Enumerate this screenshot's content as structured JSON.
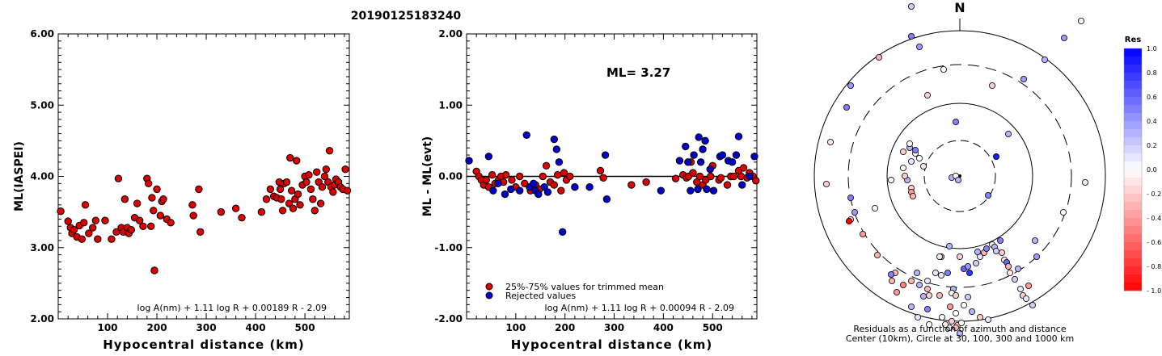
{
  "page_title": "20190125183240",
  "chart_data": [
    {
      "type": "scatter",
      "ylabel": "ML(IASPEI)",
      "xlabel": "Hypocentral distance (km)",
      "xlim": [
        0,
        590
      ],
      "ylim": [
        2.0,
        6.0
      ],
      "xticks": [
        100,
        200,
        300,
        400,
        500
      ],
      "yticks": [
        2.0,
        3.0,
        4.0,
        5.0,
        6.0
      ],
      "ytick_labels": [
        "2.00",
        "3.00",
        "4.00",
        "5.00",
        "6.00"
      ],
      "formula": "log A(nm) + 1.11 log R + 0.00189 R - 2.09",
      "marker_color": "#dd0000",
      "points": [
        [
          5,
          3.51
        ],
        [
          20,
          3.37
        ],
        [
          25,
          3.28
        ],
        [
          28,
          3.2
        ],
        [
          32,
          3.25
        ],
        [
          38,
          3.15
        ],
        [
          43,
          3.31
        ],
        [
          48,
          3.12
        ],
        [
          52,
          3.35
        ],
        [
          55,
          3.6
        ],
        [
          62,
          3.2
        ],
        [
          70,
          3.28
        ],
        [
          76,
          3.38
        ],
        [
          80,
          3.12
        ],
        [
          95,
          3.38
        ],
        [
          108,
          3.12
        ],
        [
          118,
          3.22
        ],
        [
          122,
          3.97
        ],
        [
          128,
          3.28
        ],
        [
          132,
          3.22
        ],
        [
          135,
          3.68
        ],
        [
          140,
          3.28
        ],
        [
          143,
          3.2
        ],
        [
          148,
          3.25
        ],
        [
          155,
          3.42
        ],
        [
          160,
          3.62
        ],
        [
          165,
          3.38
        ],
        [
          172,
          3.3
        ],
        [
          180,
          3.97
        ],
        [
          183,
          3.9
        ],
        [
          188,
          3.3
        ],
        [
          190,
          3.7
        ],
        [
          193,
          3.52
        ],
        [
          195,
          2.68
        ],
        [
          200,
          3.82
        ],
        [
          207,
          3.45
        ],
        [
          210,
          3.65
        ],
        [
          213,
          3.68
        ],
        [
          220,
          3.4
        ],
        [
          228,
          3.35
        ],
        [
          272,
          3.6
        ],
        [
          274,
          3.45
        ],
        [
          285,
          3.82
        ],
        [
          288,
          3.22
        ],
        [
          330,
          3.5
        ],
        [
          360,
          3.55
        ],
        [
          372,
          3.42
        ],
        [
          412,
          3.5
        ],
        [
          422,
          3.68
        ],
        [
          430,
          3.82
        ],
        [
          437,
          3.72
        ],
        [
          443,
          3.7
        ],
        [
          448,
          3.92
        ],
        [
          450,
          3.82
        ],
        [
          452,
          3.68
        ],
        [
          455,
          3.52
        ],
        [
          458,
          3.9
        ],
        [
          463,
          3.92
        ],
        [
          468,
          3.62
        ],
        [
          470,
          4.26
        ],
        [
          473,
          3.8
        ],
        [
          476,
          3.55
        ],
        [
          480,
          3.68
        ],
        [
          483,
          4.22
        ],
        [
          486,
          3.75
        ],
        [
          490,
          3.6
        ],
        [
          495,
          3.88
        ],
        [
          500,
          4.0
        ],
        [
          503,
          3.92
        ],
        [
          508,
          4.02
        ],
        [
          512,
          3.82
        ],
        [
          516,
          3.68
        ],
        [
          520,
          3.52
        ],
        [
          524,
          4.06
        ],
        [
          528,
          3.92
        ],
        [
          532,
          3.62
        ],
        [
          535,
          3.85
        ],
        [
          540,
          4.0
        ],
        [
          543,
          4.1
        ],
        [
          547,
          3.92
        ],
        [
          550,
          4.36
        ],
        [
          553,
          3.85
        ],
        [
          557,
          3.78
        ],
        [
          560,
          3.88
        ],
        [
          563,
          3.96
        ],
        [
          568,
          3.92
        ],
        [
          572,
          3.85
        ],
        [
          577,
          3.82
        ],
        [
          582,
          4.1
        ],
        [
          586,
          3.8
        ]
      ]
    },
    {
      "type": "scatter",
      "ylabel": "ML - ML(evt)",
      "xlabel": "Hypocentral distance (km)",
      "xlim": [
        0,
        590
      ],
      "ylim": [
        -2.0,
        2.0
      ],
      "xticks": [
        100,
        200,
        300,
        400,
        500
      ],
      "yticks": [
        -2.0,
        -1.0,
        0.0,
        1.0,
        2.0
      ],
      "ytick_labels": [
        "-2.00",
        "-1.00",
        "0.00",
        "1.00",
        "2.00"
      ],
      "annotation": "ML= 3.27",
      "formula": "log A(nm) + 1.11 log R + 0.00094 R - 2.09",
      "legend": [
        {
          "label": "25%-75% values for trimmed mean",
          "color": "#dd0000"
        },
        {
          "label": "Rejected values",
          "color": "#0000cc"
        }
      ],
      "red_points": [
        [
          20,
          0.07
        ],
        [
          25,
          0.0
        ],
        [
          30,
          -0.05
        ],
        [
          35,
          -0.12
        ],
        [
          40,
          -0.05
        ],
        [
          45,
          -0.15
        ],
        [
          52,
          0.02
        ],
        [
          58,
          -0.1
        ],
        [
          65,
          -0.05
        ],
        [
          70,
          0.0
        ],
        [
          75,
          -0.08
        ],
        [
          80,
          0.02
        ],
        [
          92,
          -0.05
        ],
        [
          100,
          -0.15
        ],
        [
          108,
          0.0
        ],
        [
          118,
          -0.1
        ],
        [
          130,
          -0.2
        ],
        [
          140,
          -0.12
        ],
        [
          148,
          -0.18
        ],
        [
          155,
          0.0
        ],
        [
          162,
          0.15
        ],
        [
          170,
          -0.08
        ],
        [
          178,
          -0.12
        ],
        [
          185,
          0.02
        ],
        [
          192,
          -0.2
        ],
        [
          198,
          0.05
        ],
        [
          203,
          -0.05
        ],
        [
          210,
          0.0
        ],
        [
          272,
          0.08
        ],
        [
          278,
          -0.02
        ],
        [
          335,
          -0.12
        ],
        [
          365,
          -0.08
        ],
        [
          425,
          -0.03
        ],
        [
          440,
          0.02
        ],
        [
          447,
          -0.02
        ],
        [
          451,
          0.0
        ],
        [
          456,
          0.2
        ],
        [
          460,
          0.05
        ],
        [
          468,
          -0.08
        ],
        [
          474,
          0.0
        ],
        [
          480,
          -0.12
        ],
        [
          486,
          -0.05
        ],
        [
          496,
          0.0
        ],
        [
          500,
          0.15
        ],
        [
          513,
          -0.05
        ],
        [
          517,
          -0.02
        ],
        [
          530,
          -0.12
        ],
        [
          537,
          0.0
        ],
        [
          543,
          0.0
        ],
        [
          553,
          0.08
        ],
        [
          558,
          0.0
        ],
        [
          563,
          0.12
        ],
        [
          570,
          -0.02
        ],
        [
          575,
          0.05
        ],
        [
          582,
          0.0
        ],
        [
          588,
          -0.06
        ]
      ],
      "blue_points": [
        [
          5,
          0.22
        ],
        [
          45,
          0.28
        ],
        [
          54,
          -0.2
        ],
        [
          64,
          -0.1
        ],
        [
          78,
          -0.25
        ],
        [
          90,
          -0.18
        ],
        [
          108,
          -0.2
        ],
        [
          122,
          0.58
        ],
        [
          128,
          -0.15
        ],
        [
          136,
          -0.1
        ],
        [
          140,
          -0.2
        ],
        [
          146,
          -0.25
        ],
        [
          158,
          -0.15
        ],
        [
          165,
          -0.22
        ],
        [
          178,
          0.52
        ],
        [
          183,
          0.38
        ],
        [
          188,
          0.2
        ],
        [
          195,
          -0.78
        ],
        [
          220,
          -0.15
        ],
        [
          250,
          -0.15
        ],
        [
          282,
          0.3
        ],
        [
          285,
          -0.32
        ],
        [
          395,
          -0.2
        ],
        [
          433,
          0.22
        ],
        [
          445,
          0.42
        ],
        [
          450,
          0.2
        ],
        [
          455,
          -0.2
        ],
        [
          462,
          0.3
        ],
        [
          470,
          -0.18
        ],
        [
          472,
          0.55
        ],
        [
          476,
          0.2
        ],
        [
          480,
          0.38
        ],
        [
          485,
          0.5
        ],
        [
          488,
          -0.18
        ],
        [
          495,
          0.1
        ],
        [
          502,
          -0.2
        ],
        [
          515,
          0.28
        ],
        [
          520,
          0.3
        ],
        [
          532,
          0.22
        ],
        [
          540,
          0.2
        ],
        [
          548,
          0.3
        ],
        [
          553,
          0.56
        ],
        [
          560,
          -0.12
        ],
        [
          575,
          0.0
        ],
        [
          585,
          0.28
        ]
      ]
    },
    {
      "type": "polar-scatter",
      "north_label": "N",
      "caption": "Residuals as a function of azimuth and distance",
      "caption2": "Center (10km), Circle at 30, 100, 300 and 1000 km",
      "colorbar_title": "Res",
      "colorbar_ticks": [
        1.0,
        0.8,
        0.6,
        0.4,
        0.2,
        0.0,
        -0.2,
        -0.4,
        -0.6,
        -0.8,
        -1.0
      ],
      "colorbar_tick_labels": [
        "1.0",
        "0.8",
        "0.6",
        "0.4",
        "0.2",
        "0.0",
        "- 0.2",
        "- 0.4",
        "- 0.6",
        "- 0.8",
        "- 1.0"
      ],
      "points": [
        [
          45,
          24,
          0.9
        ],
        [
          35,
          -24,
          0.5
        ],
        [
          60,
          52,
          0.3
        ],
        [
          -5,
          67,
          0.5
        ],
        [
          40,
          112,
          -0.2
        ],
        [
          79,
          120,
          0.4
        ],
        [
          105,
          144,
          0.3
        ],
        [
          129,
          171,
          0.4
        ],
        [
          150,
          192,
          0.0
        ],
        [
          155,
          -8,
          0.1
        ],
        [
          128,
          -45,
          0.0
        ],
        [
          -13,
          -87,
          0.3
        ],
        [
          -23,
          -123,
          0.1
        ],
        [
          -45,
          -149,
          0.3
        ],
        [
          -3,
          -185,
          -0.2
        ],
        [
          -13,
          -188,
          0.1
        ],
        [
          -38,
          -184,
          0.0
        ],
        [
          -52,
          -175,
          0.1
        ],
        [
          -60,
          -162,
          0.3
        ],
        [
          -78,
          -144,
          -0.4
        ],
        [
          -84,
          -130,
          -0.3
        ],
        [
          -102,
          -98,
          -0.3
        ],
        [
          -120,
          -72,
          -0.4
        ],
        [
          -135,
          -54,
          -0.2
        ],
        [
          -137,
          -56,
          -1.0
        ],
        [
          -130,
          -45,
          0.4
        ],
        [
          -135,
          -27,
          0.5
        ],
        [
          -105,
          -40,
          0.0
        ],
        [
          -85,
          -5,
          0.0
        ],
        [
          -70,
          30,
          -0.2
        ],
        [
          -40,
          100,
          -0.2
        ],
        [
          -20,
          132,
          0.0
        ],
        [
          -50,
          160,
          0.4
        ],
        [
          -60,
          173,
          0.5
        ],
        [
          -60,
          210,
          0.2
        ],
        [
          -100,
          147,
          -0.3
        ],
        [
          -135,
          112,
          0.4
        ],
        [
          -140,
          85,
          0.5
        ],
        [
          -160,
          42,
          -0.1
        ],
        [
          -165,
          -10,
          -0.2
        ],
        [
          -23,
          -100,
          0.3
        ],
        [
          -53,
          -120,
          0.3
        ],
        [
          -80,
          -120,
          -0.3
        ],
        [
          -85,
          -122,
          0.5
        ],
        [
          -60,
          -130,
          -0.3
        ],
        [
          -40,
          -140,
          -0.3
        ],
        [
          -70,
          -135,
          -0.5
        ],
        [
          -30,
          -120,
          0.1
        ],
        [
          -25,
          -100,
          -0.1
        ],
        [
          -70,
          10,
          0.0
        ],
        [
          -60,
          18,
          0.1
        ],
        [
          -50,
          22,
          0.0
        ],
        [
          -45,
          12,
          -0.1
        ],
        [
          -60,
          -15,
          -0.2
        ],
        [
          -65,
          -5,
          0.3
        ],
        [
          -60,
          -20,
          -0.4
        ],
        [
          -68,
          0,
          -0.2
        ],
        [
          -62,
          35,
          0.3
        ],
        [
          -55,
          28,
          0.0
        ],
        [
          -58,
          -25,
          -0.3
        ],
        [
          -55,
          32,
          0.5
        ],
        [
          -62,
          40,
          0.0
        ],
        [
          -10,
          -2,
          0.3
        ],
        [
          -5,
          0,
          0.0
        ],
        [
          -2,
          -5,
          0.3
        ],
        [
          0,
          -100,
          -0.2
        ],
        [
          5,
          -115,
          0.6
        ],
        [
          10,
          -112,
          0.4
        ],
        [
          12,
          -120,
          0.8
        ],
        [
          20,
          -108,
          0.2
        ],
        [
          25,
          -100,
          0.1
        ],
        [
          22,
          -94,
          0.3
        ],
        [
          30,
          -95,
          -0.3
        ],
        [
          33,
          -90,
          0.5
        ],
        [
          40,
          -85,
          -0.1
        ],
        [
          43,
          -88,
          0.3
        ],
        [
          45,
          -93,
          0.2
        ],
        [
          50,
          -80,
          0.5
        ],
        [
          52,
          -95,
          -0.2
        ],
        [
          55,
          -104,
          -0.1
        ],
        [
          58,
          -107,
          0.6
        ],
        [
          60,
          -112,
          -0.3
        ],
        [
          62,
          -120,
          -0.1
        ],
        [
          68,
          -128,
          0.2
        ],
        [
          72,
          -115,
          0.3
        ],
        [
          75,
          -140,
          0.1
        ],
        [
          78,
          -148,
          -0.2
        ],
        [
          82,
          -152,
          0.1
        ],
        [
          85,
          -136,
          -0.4
        ],
        [
          90,
          -160,
          0.2
        ],
        [
          93,
          -80,
          0.3
        ],
        [
          95,
          -100,
          0.4
        ],
        [
          -8,
          -140,
          0.3
        ],
        [
          -25,
          -148,
          -0.3
        ],
        [
          -38,
          -148,
          -0.2
        ],
        [
          -40,
          -130,
          0.1
        ],
        [
          -50,
          -135,
          0.3
        ],
        [
          -15,
          -120,
          0.5
        ],
        [
          -10,
          -145,
          0.0
        ],
        [
          -5,
          -148,
          -0.2
        ],
        [
          5,
          -160,
          0.0
        ],
        [
          10,
          -150,
          0.2
        ],
        [
          15,
          -168,
          0.3
        ],
        [
          25,
          -175,
          -0.2
        ],
        [
          35,
          -178,
          0.1
        ],
        [
          -10,
          -180,
          -0.2
        ],
        [
          -5,
          -188,
          -0.3
        ],
        [
          2,
          -182,
          0.0
        ],
        [
          -18,
          -184,
          -0.1
        ],
        [
          -22,
          -175,
          0.0
        ],
        [
          0,
          -195,
          0.3
        ],
        [
          -40,
          -165,
          0.5
        ],
        [
          -12,
          -162,
          -0.4
        ],
        [
          -5,
          -170,
          0.0
        ]
      ]
    }
  ]
}
